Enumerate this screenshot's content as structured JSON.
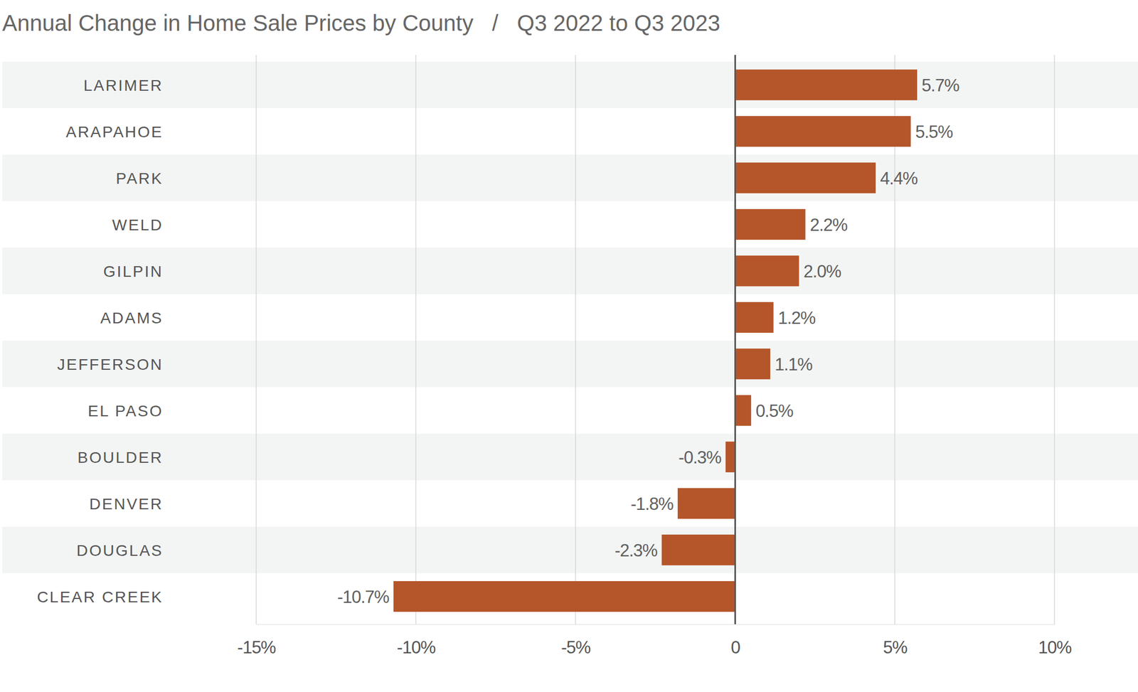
{
  "chart_data": {
    "type": "bar",
    "orientation": "horizontal",
    "title": "Annual Change in Home Sale Prices by County   /   Q3 2022 to Q3 2023",
    "categories": [
      "LARIMER",
      "ARAPAHOE",
      "PARK",
      "WELD",
      "GILPIN",
      "ADAMS",
      "JEFFERSON",
      "EL PASO",
      "BOULDER",
      "DENVER",
      "DOUGLAS",
      "CLEAR CREEK"
    ],
    "values": [
      5.7,
      5.5,
      4.4,
      2.2,
      2.0,
      1.2,
      1.1,
      0.5,
      -0.3,
      -1.8,
      -2.3,
      -10.7
    ],
    "value_labels": [
      "5.7%",
      "5.5%",
      "4.4%",
      "2.2%",
      "2.0%",
      "1.2%",
      "1.1%",
      "0.5%",
      "-0.3%",
      "-1.8%",
      "-2.3%",
      "-10.7%"
    ],
    "data_labels": true,
    "color": "#b5562a",
    "xlim": [
      -15,
      10
    ],
    "xticks": [
      {
        "value": -15,
        "label": "-15%"
      },
      {
        "value": -10,
        "label": "-10%"
      },
      {
        "value": -5,
        "label": "-5%"
      },
      0,
      {
        "value": 5,
        "label": "5%"
      },
      {
        "value": 10,
        "label": "10%"
      }
    ],
    "grid": true
  }
}
